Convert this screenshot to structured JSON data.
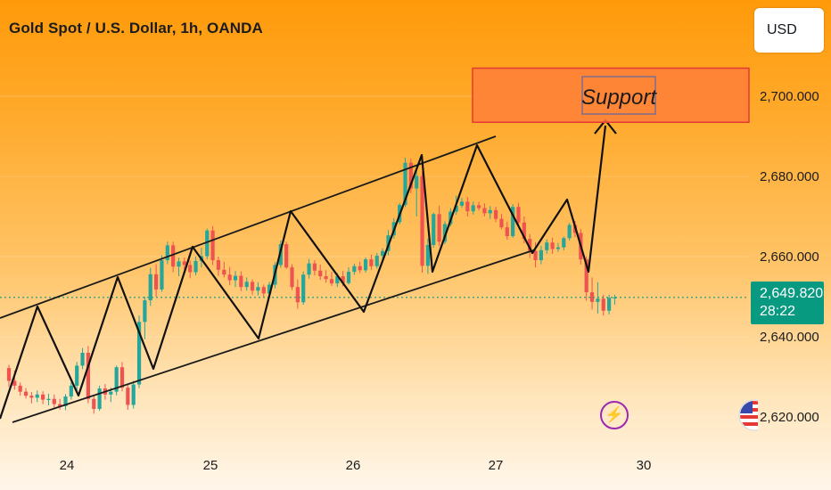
{
  "title": "Gold Spot / U.S. Dollar, 1h, OANDA",
  "currency_button": "USD",
  "last_price": "2,649.820",
  "countdown": "28:22",
  "icons": {
    "bolt": "lightning-bolt-icon",
    "flag": "us-flag-icon"
  },
  "colors": {
    "up": "#26a69a",
    "down": "#ef5350",
    "badge": "#089981",
    "support_box": "#ff7f3a",
    "support_border": "#e53935"
  },
  "chart_data": {
    "type": "candlestick",
    "yticks": [
      "2,620.000",
      "2,640.000",
      "2,660.000",
      "2,680.000",
      "2,700.000"
    ],
    "xticks": [
      "24",
      "25",
      "26",
      "27",
      "30"
    ],
    "y_range": [
      2616,
      2712
    ],
    "last_price_value": 2649.82,
    "annotations": [
      {
        "type": "box",
        "label": "Support",
        "y_range": [
          2693.5,
          2707
        ]
      }
    ],
    "candles": [
      [
        2632.2,
        2633.0,
        2627.5,
        2629.0
      ],
      [
        2629.0,
        2631.6,
        2626.8,
        2627.8
      ],
      [
        2627.8,
        2628.6,
        2625.3,
        2626.3
      ],
      [
        2626.3,
        2627.2,
        2624.6,
        2625.3
      ],
      [
        2625.3,
        2626.2,
        2623.4,
        2624.8
      ],
      [
        2624.8,
        2626.6,
        2623.7,
        2625.6
      ],
      [
        2625.6,
        2626.4,
        2623.2,
        2624.3
      ],
      [
        2624.3,
        2625.8,
        2622.9,
        2624.5
      ],
      [
        2624.5,
        2625.6,
        2622.3,
        2623.2
      ],
      [
        2623.2,
        2624.5,
        2621.8,
        2622.7
      ],
      [
        2622.7,
        2625.7,
        2621.7,
        2625.1
      ],
      [
        2625.1,
        2628.7,
        2624.3,
        2627.8
      ],
      [
        2627.8,
        2633.7,
        2626.5,
        2632.8
      ],
      [
        2632.8,
        2637.2,
        2631.9,
        2636.0
      ],
      [
        2636.0,
        2637.7,
        2623.4,
        2624.5
      ],
      [
        2624.5,
        2625.3,
        2620.8,
        2622.0
      ],
      [
        2622.0,
        2627.8,
        2621.5,
        2627.1
      ],
      [
        2627.1,
        2628.2,
        2624.3,
        2625.6
      ],
      [
        2625.6,
        2627.3,
        2623.7,
        2626.3
      ],
      [
        2626.3,
        2632.8,
        2625.4,
        2632.4
      ],
      [
        2632.4,
        2633.7,
        2626.4,
        2627.3
      ],
      [
        2627.3,
        2628.2,
        2621.8,
        2623.0
      ],
      [
        2623.0,
        2629.0,
        2622.1,
        2628.1
      ],
      [
        2628.1,
        2645.3,
        2627.2,
        2643.7
      ],
      [
        2643.7,
        2650.0,
        2639.4,
        2649.1
      ],
      [
        2649.1,
        2657.2,
        2647.7,
        2655.6
      ],
      [
        2655.6,
        2658.1,
        2650.0,
        2651.8
      ],
      [
        2651.8,
        2660.3,
        2651.2,
        2659.1
      ],
      [
        2659.1,
        2663.7,
        2658.1,
        2662.8
      ],
      [
        2662.8,
        2663.7,
        2656.1,
        2657.5
      ],
      [
        2657.5,
        2659.7,
        2655.1,
        2658.8
      ],
      [
        2658.8,
        2659.8,
        2656.7,
        2657.9
      ],
      [
        2657.9,
        2659.0,
        2654.6,
        2656.1
      ],
      [
        2656.1,
        2660.0,
        2655.3,
        2658.9
      ],
      [
        2658.9,
        2662.2,
        2657.3,
        2660.1
      ],
      [
        2660.1,
        2667.0,
        2659.3,
        2666.5
      ],
      [
        2666.5,
        2667.6,
        2657.9,
        2659.1
      ],
      [
        2659.1,
        2660.0,
        2655.2,
        2656.7
      ],
      [
        2656.7,
        2658.7,
        2654.8,
        2655.5
      ],
      [
        2655.5,
        2657.4,
        2652.9,
        2654.1
      ],
      [
        2654.1,
        2656.4,
        2652.4,
        2655.2
      ],
      [
        2655.2,
        2656.3,
        2651.4,
        2652.4
      ],
      [
        2652.4,
        2654.8,
        2651.5,
        2653.7
      ],
      [
        2653.7,
        2654.3,
        2650.5,
        2651.5
      ],
      [
        2651.5,
        2653.6,
        2650.3,
        2652.4
      ],
      [
        2652.4,
        2653.0,
        2650.0,
        2650.8
      ],
      [
        2650.8,
        2653.7,
        2649.9,
        2653.0
      ],
      [
        2653.0,
        2658.6,
        2652.1,
        2657.9
      ],
      [
        2657.9,
        2664.0,
        2657.2,
        2663.1
      ],
      [
        2663.1,
        2663.7,
        2656.9,
        2657.3
      ],
      [
        2657.3,
        2658.1,
        2651.7,
        2652.4
      ],
      [
        2652.4,
        2654.3,
        2647.0,
        2648.6
      ],
      [
        2648.6,
        2656.3,
        2648.0,
        2655.5
      ],
      [
        2655.5,
        2659.4,
        2654.5,
        2658.3
      ],
      [
        2658.3,
        2659.1,
        2655.3,
        2656.5
      ],
      [
        2656.5,
        2658.0,
        2654.2,
        2655.1
      ],
      [
        2655.1,
        2656.6,
        2653.5,
        2654.4
      ],
      [
        2654.4,
        2656.2,
        2652.7,
        2653.3
      ],
      [
        2653.3,
        2655.9,
        2652.4,
        2655.1
      ],
      [
        2655.1,
        2656.4,
        2652.6,
        2653.4
      ],
      [
        2653.4,
        2657.3,
        2653.0,
        2656.2
      ],
      [
        2656.2,
        2658.2,
        2655.4,
        2657.6
      ],
      [
        2657.6,
        2658.7,
        2655.9,
        2656.6
      ],
      [
        2656.6,
        2659.8,
        2656.0,
        2659.3
      ],
      [
        2659.3,
        2660.5,
        2656.7,
        2657.6
      ],
      [
        2657.6,
        2660.9,
        2657.0,
        2660.2
      ],
      [
        2660.2,
        2662.1,
        2658.9,
        2661.4
      ],
      [
        2661.4,
        2666.6,
        2660.3,
        2665.3
      ],
      [
        2665.3,
        2669.6,
        2664.5,
        2668.6
      ],
      [
        2668.6,
        2673.4,
        2668.0,
        2672.9
      ],
      [
        2672.9,
        2684.7,
        2672.4,
        2683.4
      ],
      [
        2683.4,
        2684.4,
        2675.8,
        2677.0
      ],
      [
        2677.0,
        2681.5,
        2670.0,
        2680.1
      ],
      [
        2680.1,
        2681.2,
        2656.0,
        2657.7
      ],
      [
        2657.7,
        2664.5,
        2655.7,
        2662.9
      ],
      [
        2662.9,
        2671.0,
        2662.2,
        2670.6
      ],
      [
        2670.6,
        2672.7,
        2662.6,
        2663.7
      ],
      [
        2663.7,
        2668.8,
        2663.1,
        2668.1
      ],
      [
        2668.1,
        2672.1,
        2667.5,
        2671.2
      ],
      [
        2671.2,
        2675.2,
        2670.4,
        2672.7
      ],
      [
        2672.7,
        2674.6,
        2672.2,
        2673.7
      ],
      [
        2673.7,
        2674.8,
        2670.0,
        2671.3
      ],
      [
        2671.3,
        2673.7,
        2670.5,
        2672.8
      ],
      [
        2672.8,
        2673.6,
        2671.5,
        2672.1
      ],
      [
        2672.1,
        2673.3,
        2670.0,
        2670.8
      ],
      [
        2670.8,
        2672.6,
        2669.4,
        2671.6
      ],
      [
        2671.6,
        2672.4,
        2668.6,
        2669.4
      ],
      [
        2669.4,
        2670.6,
        2666.8,
        2667.3
      ],
      [
        2667.3,
        2668.7,
        2664.2,
        2665.1
      ],
      [
        2665.1,
        2673.1,
        2664.7,
        2672.4
      ],
      [
        2672.4,
        2673.4,
        2667.7,
        2668.5
      ],
      [
        2668.5,
        2670.0,
        2663.3,
        2664.4
      ],
      [
        2664.4,
        2665.6,
        2659.6,
        2661.4
      ],
      [
        2661.4,
        2663.6,
        2657.3,
        2659.1
      ],
      [
        2659.1,
        2662.7,
        2658.1,
        2661.6
      ],
      [
        2661.6,
        2664.3,
        2660.7,
        2663.5
      ],
      [
        2663.5,
        2664.7,
        2660.7,
        2661.9
      ],
      [
        2661.9,
        2663.4,
        2661.2,
        2662.3
      ],
      [
        2662.3,
        2665.0,
        2661.6,
        2664.6
      ],
      [
        2664.6,
        2668.4,
        2664.0,
        2667.9
      ],
      [
        2667.9,
        2668.9,
        2664.9,
        2665.9
      ],
      [
        2665.9,
        2666.9,
        2658.0,
        2659.3
      ],
      [
        2659.3,
        2660.1,
        2649.0,
        2651.1
      ],
      [
        2651.1,
        2654.8,
        2646.8,
        2648.7
      ],
      [
        2648.7,
        2653.6,
        2645.8,
        2649.5
      ],
      [
        2649.5,
        2650.5,
        2645.3,
        2646.5
      ],
      [
        2646.5,
        2650.5,
        2645.6,
        2649.7
      ],
      [
        2649.7,
        2650.5,
        2648.0,
        2649.82
      ]
    ]
  }
}
